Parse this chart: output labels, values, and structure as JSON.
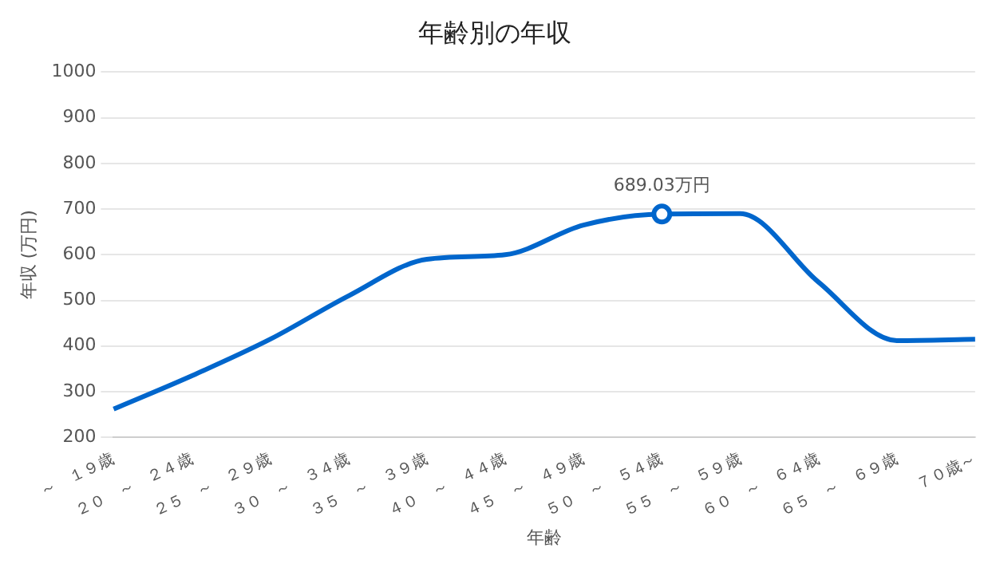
{
  "chart_data": {
    "type": "line",
    "title": "年齢別の年収",
    "xlabel": "年齢",
    "ylabel": "年収 (万円)",
    "categories": [
      "～　１９歳",
      "２０　～　２４歳",
      "２５　～　２９歳",
      "３０　～　３４歳",
      "３５　～　３９歳",
      "４０　～　４４歳",
      "４５　～　４９歳",
      "５０　～　５４歳",
      "５５　～　５９歳",
      "６０　～　６４歳",
      "６５　～　６９歳",
      "７０歳～"
    ],
    "series": [
      {
        "color": "#0066cc",
        "values": [
          262,
          335,
          415,
          510,
          590,
          600,
          665,
          689.03,
          690,
          540,
          412,
          415
        ],
        "value_labels": [
          null,
          null,
          null,
          null,
          null,
          null,
          null,
          "689.03万円",
          null,
          null,
          null,
          null
        ]
      }
    ],
    "ylim": [
      200,
      1000
    ],
    "yticks": [
      200,
      300,
      400,
      500,
      600,
      700,
      800,
      900,
      1000
    ],
    "grid": "y",
    "legend": false
  }
}
